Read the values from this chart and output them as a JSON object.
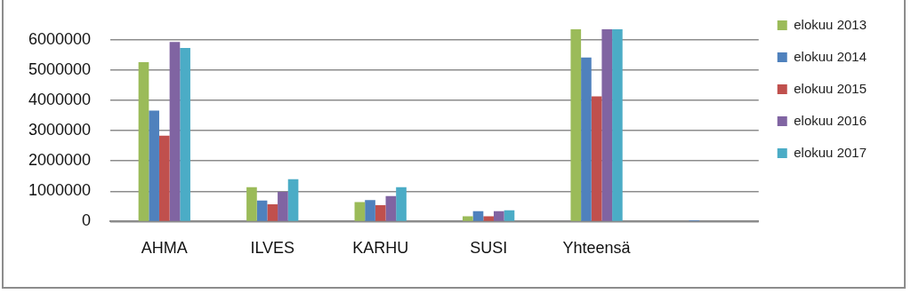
{
  "chart_data": {
    "type": "bar",
    "categories": [
      "AHMA",
      "ILVES",
      "KARHU",
      "SUSI",
      "Yhteensä",
      null
    ],
    "series": [
      {
        "name": "elokuu 2013",
        "color": "#9bbb59",
        "values": [
          5260000,
          1130000,
          640000,
          170000,
          6350000,
          null
        ]
      },
      {
        "name": "elokuu 2014",
        "color": "#4f81bd",
        "values": [
          3660000,
          690000,
          710000,
          340000,
          5410000,
          40000
        ]
      },
      {
        "name": "elokuu 2015",
        "color": "#c0504d",
        "values": [
          2830000,
          570000,
          540000,
          170000,
          4130000,
          null
        ]
      },
      {
        "name": "elokuu 2016",
        "color": "#8064a2",
        "values": [
          5930000,
          980000,
          840000,
          340000,
          6350000,
          null
        ]
      },
      {
        "name": "elokuu 2017",
        "color": "#4bacc6",
        "values": [
          5730000,
          1400000,
          1130000,
          370000,
          6350000,
          null
        ]
      }
    ],
    "ylim": [
      0,
      6350000
    ],
    "yticks": [
      0,
      1000000,
      2000000,
      3000000,
      4000000,
      5000000,
      6000000
    ],
    "grid": "y",
    "legend": "top right"
  }
}
